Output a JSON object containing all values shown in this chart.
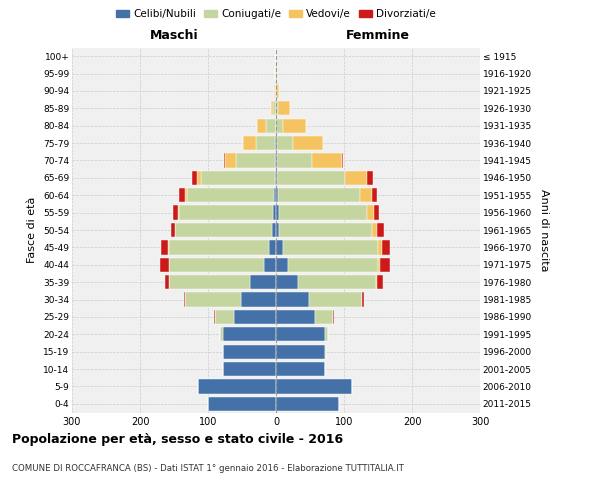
{
  "age_groups": [
    "0-4",
    "5-9",
    "10-14",
    "15-19",
    "20-24",
    "25-29",
    "30-34",
    "35-39",
    "40-44",
    "45-49",
    "50-54",
    "55-59",
    "60-64",
    "65-69",
    "70-74",
    "75-79",
    "80-84",
    "85-89",
    "90-94",
    "95-99",
    "100+"
  ],
  "birth_years": [
    "2011-2015",
    "2006-2010",
    "2001-2005",
    "1996-2000",
    "1991-1995",
    "1986-1990",
    "1981-1985",
    "1976-1980",
    "1971-1975",
    "1966-1970",
    "1961-1965",
    "1956-1960",
    "1951-1955",
    "1946-1950",
    "1941-1945",
    "1936-1940",
    "1931-1935",
    "1926-1930",
    "1921-1925",
    "1916-1920",
    "≤ 1915"
  ],
  "males": {
    "celibi": [
      100,
      115,
      78,
      78,
      78,
      62,
      52,
      38,
      18,
      10,
      6,
      4,
      3,
      2,
      1,
      1,
      0,
      0,
      0,
      0,
      0
    ],
    "coniugati": [
      0,
      0,
      0,
      0,
      4,
      28,
      82,
      120,
      140,
      148,
      142,
      138,
      128,
      108,
      58,
      28,
      14,
      4,
      2,
      1,
      0
    ],
    "vedovi": [
      0,
      0,
      0,
      0,
      0,
      0,
      0,
      0,
      0,
      1,
      1,
      2,
      3,
      6,
      16,
      20,
      14,
      4,
      1,
      0,
      0
    ],
    "divorziati": [
      0,
      0,
      0,
      0,
      0,
      1,
      2,
      5,
      12,
      10,
      5,
      8,
      8,
      8,
      2,
      0,
      0,
      0,
      0,
      0,
      0
    ]
  },
  "females": {
    "nubili": [
      92,
      112,
      72,
      72,
      72,
      58,
      48,
      32,
      18,
      10,
      5,
      4,
      3,
      2,
      1,
      1,
      0,
      0,
      0,
      0,
      0
    ],
    "coniugate": [
      0,
      0,
      0,
      2,
      4,
      26,
      78,
      115,
      132,
      140,
      136,
      130,
      120,
      100,
      52,
      24,
      10,
      3,
      1,
      0,
      0
    ],
    "vedove": [
      0,
      0,
      0,
      0,
      0,
      0,
      1,
      2,
      3,
      6,
      8,
      10,
      18,
      32,
      44,
      44,
      34,
      18,
      4,
      2,
      0
    ],
    "divorziate": [
      0,
      0,
      0,
      0,
      0,
      1,
      2,
      8,
      15,
      12,
      10,
      8,
      8,
      8,
      2,
      0,
      0,
      0,
      0,
      0,
      0
    ]
  },
  "colors": {
    "celibi_nubili": "#4472a8",
    "coniugati": "#c5d5a0",
    "vedovi": "#f5c460",
    "divorziati": "#cc1a1a"
  },
  "xlim": 300,
  "title": "Popolazione per età, sesso e stato civile - 2016",
  "subtitle": "COMUNE DI ROCCAFRANCA (BS) - Dati ISTAT 1° gennaio 2016 - Elaborazione TUTTITALIA.IT",
  "ylabel_left": "Fasce di età",
  "ylabel_right": "Anni di nascita",
  "xlabel_left": "Maschi",
  "xlabel_right": "Femmine",
  "bg_color": "#f0f0f0",
  "grid_color": "#cccccc"
}
